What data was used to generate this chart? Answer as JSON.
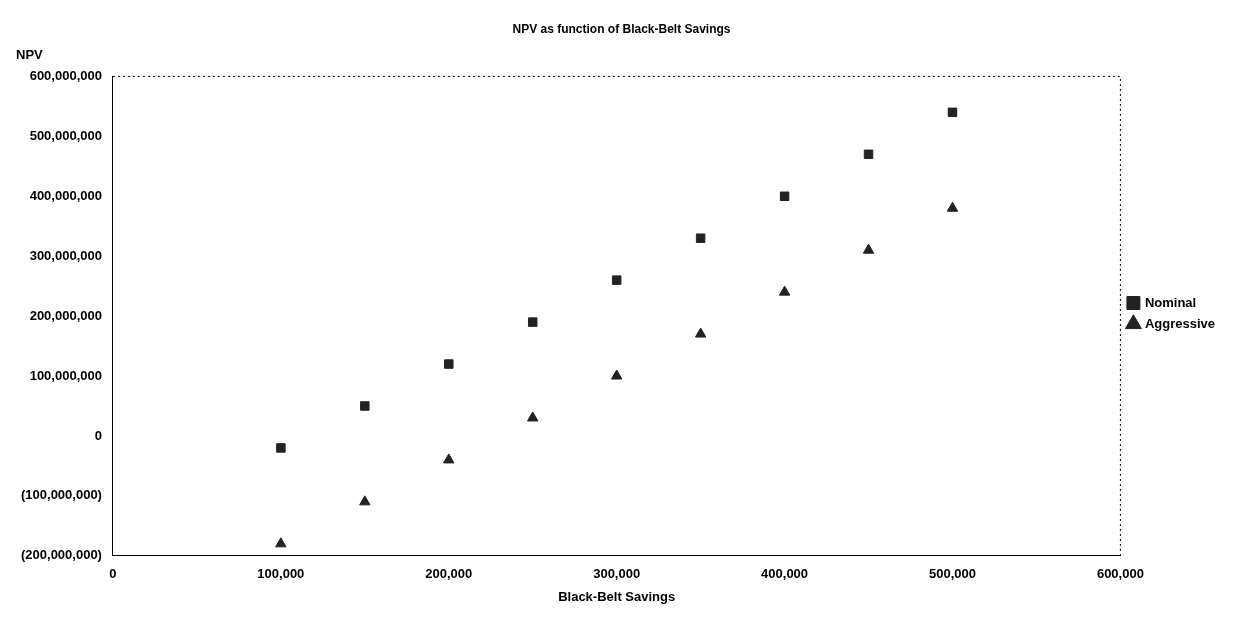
{
  "chart_data": {
    "type": "scatter",
    "title": "NPV as function of Black-Belt Savings",
    "xlabel": "Black-Belt Savings",
    "ylabel": "NPV",
    "series": [
      {
        "name": "Nominal",
        "color": "#222222",
        "marker": "square",
        "x": [
          100000,
          150000,
          200000,
          250000,
          300000,
          350000,
          400000,
          450000,
          500000
        ],
        "values": [
          -20000000,
          50000000,
          120000000,
          190000000,
          260000000,
          330000000,
          400000000,
          470000000,
          540000000
        ]
      },
      {
        "name": "Aggressive",
        "color": "#222222",
        "marker": "triangle",
        "x": [
          100000,
          150000,
          200000,
          250000,
          300000,
          350000,
          400000,
          450000,
          500000
        ],
        "values": [
          -180000000,
          -110000000,
          -40000000,
          30000000,
          100000000,
          170000000,
          240000000,
          310000000,
          380000000
        ]
      }
    ],
    "xlim": [
      0,
      600000
    ],
    "xticks": [
      {
        "value": 0,
        "label": "0"
      },
      {
        "value": 100000,
        "label": "100,000"
      },
      {
        "value": 200000,
        "label": "200,000"
      },
      {
        "value": 300000,
        "label": "300,000"
      },
      {
        "value": 400000,
        "label": "400,000"
      },
      {
        "value": 500000,
        "label": "500,000"
      },
      {
        "value": 600000,
        "label": "600,000"
      }
    ],
    "ylim": [
      -200000000,
      600000000
    ],
    "yticks": [
      {
        "value": -200000000,
        "label": "(200,000,000)"
      },
      {
        "value": -100000000,
        "label": "(100,000,000)"
      },
      {
        "value": 0,
        "label": "0"
      },
      {
        "value": 100000000,
        "label": "100,000,000"
      },
      {
        "value": 200000000,
        "label": "200,000,000"
      },
      {
        "value": 300000000,
        "label": "300,000,000"
      },
      {
        "value": 400000000,
        "label": "400,000,000"
      },
      {
        "value": 500000000,
        "label": "500,000,000"
      },
      {
        "value": 600000000,
        "label": "600,000,000"
      }
    ],
    "grid": false,
    "legend": "right"
  }
}
